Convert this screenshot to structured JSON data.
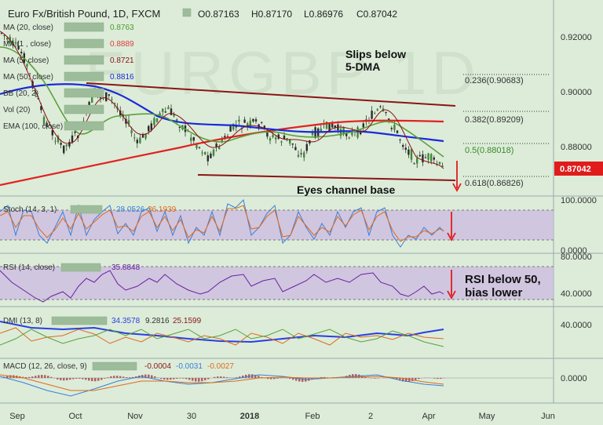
{
  "header": {
    "symbol": "Euro Fx/British Pound, 1D, FXCM",
    "ohlc": {
      "o": "O0.87163",
      "h": "H0.87170",
      "l": "L0.86976",
      "c": "C0.87042"
    }
  },
  "watermark": "EURGBP 1D",
  "indicators": [
    {
      "name": "MA (20, close)",
      "value": "0.8763",
      "color": "#4c9a2a"
    },
    {
      "name": "MA (1 , close)",
      "value": "0.8889",
      "color": "#e23b3b"
    },
    {
      "name": "MA (5, close)",
      "value": "0.8721",
      "color": "#8b1010"
    },
    {
      "name": "MA (50, close)",
      "value": "0.8816",
      "color": "#1a2ad8"
    },
    {
      "name": "BB (20, 2)",
      "value": "",
      "color": "#777777"
    },
    {
      "name": "Vol (20)",
      "value": "",
      "color": "#777777"
    },
    {
      "name": "EMA (100, close)",
      "value": "",
      "color": "#e22222"
    }
  ],
  "annotations": {
    "slips": "Slips below\n5-DMA",
    "channel": "Eyes channel base",
    "rsi": "RSI below 50,\nbias lower"
  },
  "price_axis": {
    "ticks": [
      "0.92000",
      "0.90000",
      "0.88000"
    ],
    "last_price": "0.87042",
    "last_price_color": "#e11b1b"
  },
  "fib_levels": [
    {
      "label": "0.236(0.90683)",
      "value": 0.90683
    },
    {
      "label": "0.382(0.89209)",
      "value": 0.89209
    },
    {
      "label": "0.5(0.88018)",
      "value": 0.88018
    },
    {
      "label": "0.618(0.86826)",
      "value": 0.86826
    }
  ],
  "stoch": {
    "name": "Stoch (14, 3, 1)",
    "k": "28.0526",
    "d": "26.1939",
    "ticks": [
      "100.0000",
      "0.0000"
    ]
  },
  "rsi": {
    "name": "RSI (14, close)",
    "value": "35.8848",
    "ticks": [
      "80.0000",
      "40.0000"
    ]
  },
  "dmi": {
    "name": "DMI (13, 8)",
    "adx": "34.3578",
    "pdi": "9.2816",
    "mdi": "25.1599",
    "ticks": [
      "40.0000"
    ]
  },
  "macd": {
    "name": "MACD (12, 26, close, 9)",
    "hist": "-0.0004",
    "macd": "-0.0031",
    "signal": "-0.0027",
    "ticks": [
      "0.0000"
    ]
  },
  "time_axis": [
    "Sep",
    "Oct",
    "Nov",
    "30",
    "2018",
    "Feb",
    "2",
    "Apr",
    "May",
    "Jun"
  ],
  "chart_data": {
    "type": "line",
    "title": "Euro Fx/British Pound, 1D, FXCM",
    "x": [
      "Sep",
      "Oct",
      "Nov",
      "30",
      "2018",
      "Feb",
      "2",
      "Apr"
    ],
    "series": [
      {
        "name": "MA (50, close)",
        "values": [
          0.905,
          0.897,
          0.888,
          0.884,
          0.884,
          0.883,
          0.883,
          0.8816
        ]
      },
      {
        "name": "MA (20, close)",
        "values": [
          0.905,
          0.893,
          0.882,
          0.881,
          0.882,
          0.884,
          0.887,
          0.8763
        ]
      },
      {
        "name": "EMA (100, close)",
        "values": [
          0.866,
          0.871,
          0.876,
          0.881,
          0.884,
          0.887,
          0.8889,
          0.8889
        ]
      }
    ],
    "ylim": [
      0.865,
      0.925
    ],
    "grid": false
  }
}
